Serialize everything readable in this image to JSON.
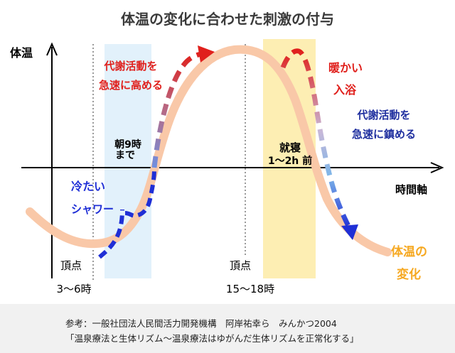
{
  "title": "体温の変化に合わせた刺激の付与",
  "y_axis_label": "体温",
  "x_axis_label": "時間軸",
  "morning_label": [
    "朝9時",
    "まで"
  ],
  "bedtime_label": [
    "就寝",
    "1～2h 前"
  ],
  "trough_label": [
    "頂点",
    "3～6時"
  ],
  "peak_label": [
    "頂点",
    "15～18時"
  ],
  "stimulus_up": [
    "代謝活動を",
    "急速に高める"
  ],
  "stimulus_down": [
    "代謝活動を",
    "急速に鎮める"
  ],
  "cold_shower": [
    "冷たい",
    "シャワー"
  ],
  "warm_bath": [
    "暖かい",
    "入浴"
  ],
  "curve_label": [
    "体温の",
    "変化"
  ],
  "reference": {
    "line1": "参考：一般社団法人民間活力開発機構　阿岸祐幸ら　みんかつ2004",
    "line2": "「温泉療法と生体リズム～温泉療法はゆがんだ生体リズムを正常化する」"
  },
  "colors": {
    "title": "#3a3a3a",
    "curve": "#f9c8a8",
    "warm_zone": "#fdeeb3",
    "cool_zone": "#e2f1fb",
    "red": "#e0201c",
    "blue": "#1f2fd6",
    "dark_blue": "#1f2f9f",
    "orange": "#f6a820"
  }
}
